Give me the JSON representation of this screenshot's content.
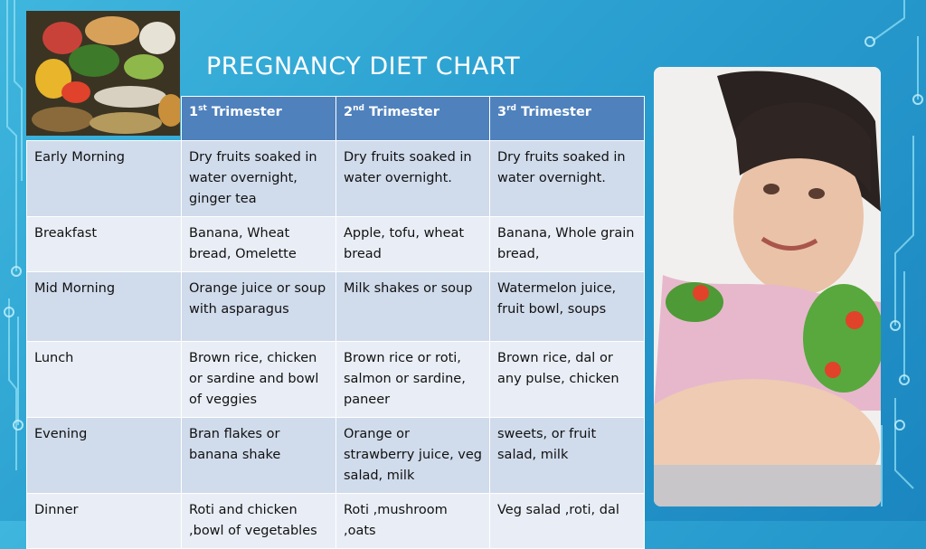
{
  "slide": {
    "title": "PREGNANCY DIET CHART"
  },
  "table": {
    "headers": [
      {
        "prefix": "1",
        "sup": "st",
        "text": " Trimester"
      },
      {
        "prefix": "2",
        "sup": "nd",
        "text": " Trimester"
      },
      {
        "prefix": "3",
        "sup": "rd",
        "text": " Trimester"
      }
    ],
    "rows": [
      {
        "meal": "Early Morning",
        "cells": [
          "Dry fruits soaked in water overnight, ginger tea",
          "Dry fruits soaked in water overnight.",
          "Dry fruits soaked in water overnight."
        ]
      },
      {
        "meal": "Breakfast",
        "cells": [
          "Banana, Wheat bread, Omelette",
          "Apple, tofu, wheat bread",
          "Banana, Whole grain bread,"
        ]
      },
      {
        "meal": "Mid Morning",
        "cells": [
          "Orange juice or soup with asparagus",
          "Milk shakes or soup",
          "Watermelon juice, fruit bowl, soups"
        ]
      },
      {
        "meal": "Lunch",
        "cells": [
          "Brown rice, chicken or sardine and bowl of veggies",
          "Brown rice or roti, salmon or sardine, paneer",
          "Brown rice, dal or any pulse, chicken"
        ]
      },
      {
        "meal": "Evening",
        "cells": [
          "Bran flakes or banana shake",
          "Orange or strawberry juice, veg salad, milk",
          "sweets, or fruit salad, milk"
        ]
      },
      {
        "meal": "Dinner",
        "cells": [
          "Roti and chicken ,bowl of vegetables",
          "Roti ,mushroom ,oats",
          "Veg salad ,roti, dal"
        ]
      }
    ]
  },
  "colors": {
    "header_fill": "#4f81bd",
    "row_odd": "#d0dbeb",
    "row_even": "#e9eef6",
    "background": "#2a9fd0"
  }
}
